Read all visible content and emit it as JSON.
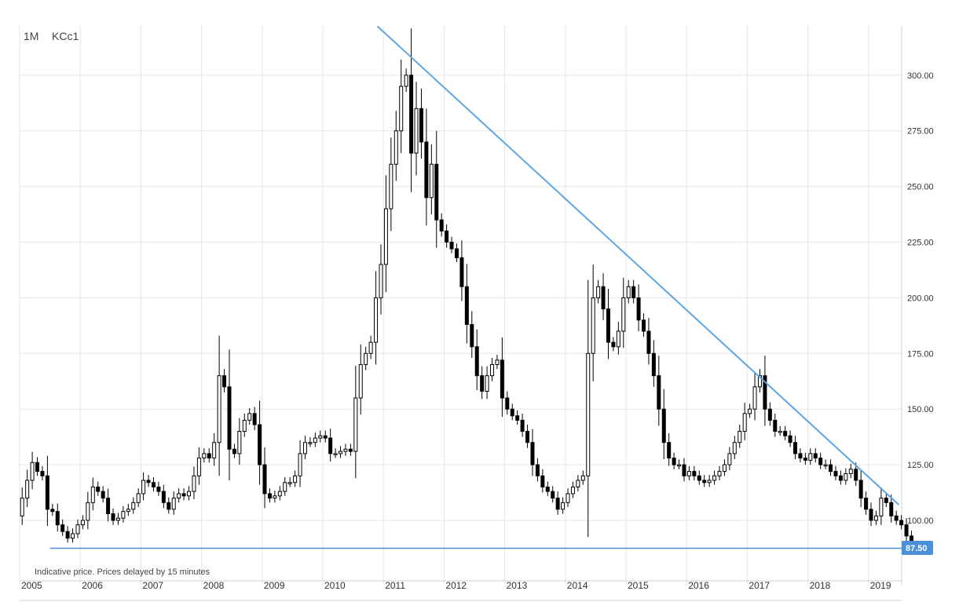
{
  "header": {
    "interval": "1M",
    "symbol": "KCc1"
  },
  "note": "Indicative price. Prices delayed by 15 minutes",
  "colors": {
    "candle": "#000000",
    "trendline": "#5aa6e6",
    "support": "#4a90d9",
    "grid": "#e6e6e6",
    "tag_bg": "#4a90d9"
  },
  "chart_data": {
    "type": "candlestick",
    "title": "",
    "xlabel": "",
    "ylabel": "",
    "y_ticks": [
      "300.00",
      "275.00",
      "250.00",
      "225.00",
      "200.00",
      "175.00",
      "150.00",
      "125.00",
      "100.00"
    ],
    "y_tick_values": [
      300,
      275,
      250,
      225,
      200,
      175,
      150,
      125,
      100
    ],
    "x_ticks": [
      "2005",
      "2006",
      "2007",
      "2008",
      "2009",
      "2010",
      "2011",
      "2012",
      "2013",
      "2014",
      "2015",
      "2016",
      "2017",
      "2018",
      "2019"
    ],
    "ylim": [
      80,
      322
    ],
    "xlim": [
      2005.0,
      2019.5
    ],
    "current_price_label": "87.50",
    "current_price": 87.5,
    "lines": [
      {
        "name": "",
        "x": [
          2010.9,
          2019.5
        ],
        "y": [
          322,
          107
        ]
      },
      {
        "name": "",
        "x": [
          2005.5,
          2019.5
        ],
        "y": [
          87.5,
          87.5
        ]
      }
    ],
    "series": [
      {
        "name": "",
        "y": [
          110,
          118,
          126,
          122,
          120,
          105,
          104,
          98,
          95,
          92,
          94,
          98,
          100,
          108,
          115,
          113,
          110,
          103,
          100,
          101,
          104,
          105,
          108,
          112,
          118,
          117,
          115,
          113,
          108,
          105,
          110,
          112,
          111,
          113,
          120,
          128,
          130,
          128,
          135,
          165,
          160,
          132,
          130,
          140,
          145,
          148,
          143,
          125,
          112,
          110,
          111,
          113,
          117,
          117,
          120,
          130,
          135,
          135,
          137,
          138,
          137,
          130,
          130,
          131,
          132,
          131,
          155,
          170,
          175,
          180,
          200,
          215,
          240,
          260,
          275,
          295,
          300,
          265,
          285,
          270,
          245,
          260,
          235,
          230,
          225,
          222,
          218,
          205,
          188,
          178,
          165,
          158,
          165,
          170,
          172,
          155,
          150,
          147,
          145,
          140,
          135,
          125,
          120,
          115,
          113,
          110,
          105,
          108,
          112,
          115,
          118,
          120,
          175,
          200,
          205,
          195,
          180,
          178,
          185,
          200,
          205,
          200,
          190,
          185,
          175,
          165,
          150,
          135,
          128,
          125,
          125,
          120,
          122,
          120,
          118,
          117,
          118,
          120,
          122,
          125,
          130,
          135,
          140,
          148,
          150,
          160,
          165,
          150,
          145,
          140,
          140,
          138,
          135,
          130,
          128,
          127,
          130,
          128,
          125,
          125,
          122,
          120,
          118,
          121,
          123,
          118,
          110,
          105,
          100,
          102,
          110,
          108,
          102,
          100,
          98,
          93,
          91
        ]
      }
    ]
  }
}
